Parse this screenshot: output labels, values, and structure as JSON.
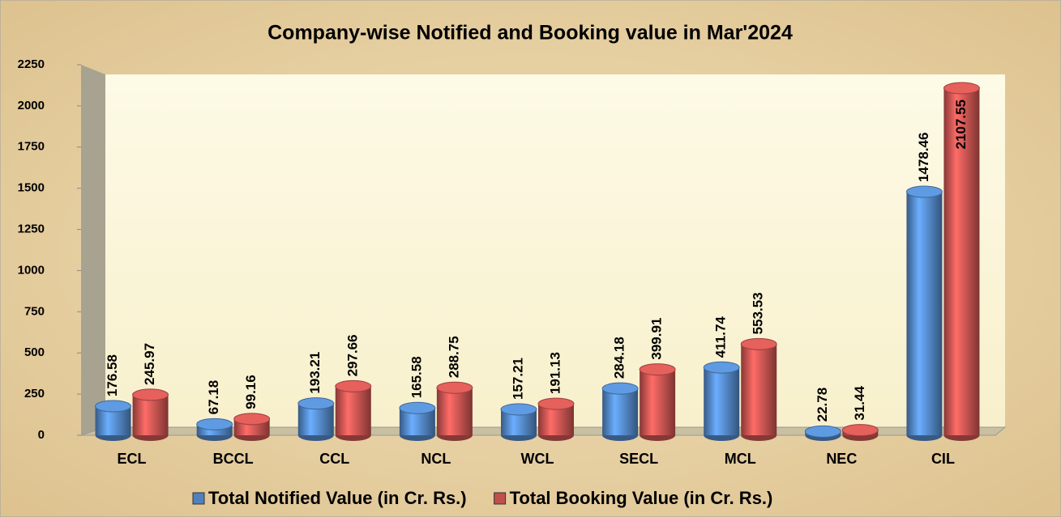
{
  "chart_data": {
    "type": "bar",
    "title": "Company-wise Notified and Booking value in Mar'2024",
    "categories": [
      "ECL",
      "BCCL",
      "CCL",
      "NCL",
      "WCL",
      "SECL",
      "MCL",
      "NEC",
      "CIL"
    ],
    "series": [
      {
        "name": "Total Notified Value (in Cr. Rs.)",
        "color": "#4f81bd",
        "values": [
          176.58,
          67.18,
          193.21,
          165.58,
          157.21,
          284.18,
          411.74,
          22.78,
          1478.46
        ]
      },
      {
        "name": "Total Booking Value (in Cr. Rs.)",
        "color": "#c0504d",
        "values": [
          245.97,
          99.16,
          297.66,
          288.75,
          191.13,
          399.91,
          553.53,
          31.44,
          2107.55
        ]
      }
    ],
    "ylim": [
      0,
      2250
    ],
    "yticks": [
      0,
      250,
      500,
      750,
      1000,
      1250,
      1500,
      1750,
      2000,
      2250
    ]
  }
}
